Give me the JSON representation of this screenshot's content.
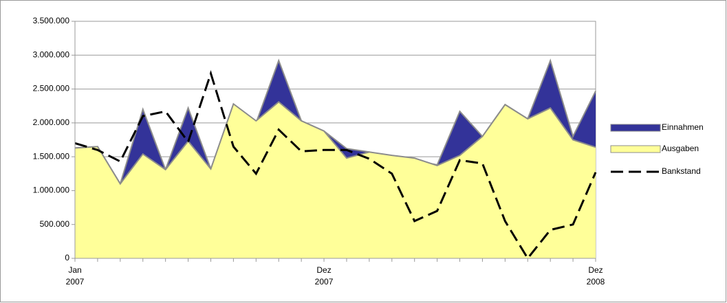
{
  "chart_data": {
    "type": "area",
    "categories": [
      "Jan\n2007",
      null,
      null,
      null,
      null,
      null,
      null,
      null,
      null,
      null,
      null,
      "Dez\n2007",
      null,
      null,
      null,
      null,
      null,
      null,
      null,
      null,
      null,
      null,
      null,
      "Dez\n2008"
    ],
    "series": [
      {
        "name": "Einnahmen",
        "type": "area",
        "color": "#333399",
        "values": [
          1630000,
          1650000,
          1100000,
          2200000,
          1310000,
          2220000,
          1320000,
          2200000,
          2000000,
          2920000,
          2030000,
          1880000,
          1620000,
          1570000,
          1500000,
          1450000,
          1380000,
          2170000,
          1800000,
          2270000,
          2060000,
          2920000,
          1800000,
          2470000
        ]
      },
      {
        "name": "Ausgaben",
        "type": "area",
        "color": "#ffff99",
        "values": [
          1630000,
          1650000,
          1100000,
          1540000,
          1310000,
          1730000,
          1320000,
          2280000,
          2030000,
          2310000,
          2030000,
          1880000,
          1480000,
          1570000,
          1520000,
          1480000,
          1370000,
          1520000,
          1800000,
          2270000,
          2060000,
          2220000,
          1750000,
          1640000
        ]
      },
      {
        "name": "Bankstand",
        "type": "line",
        "color": "#000000",
        "values": [
          1700000,
          1600000,
          1430000,
          2100000,
          2170000,
          1720000,
          2730000,
          1650000,
          1250000,
          1900000,
          1580000,
          1600000,
          1600000,
          1470000,
          1250000,
          550000,
          700000,
          1450000,
          1400000,
          550000,
          0,
          420000,
          500000,
          1270000
        ]
      }
    ],
    "ylim": [
      0,
      3500000
    ],
    "yticks": [
      0,
      {
        "value": 500000,
        "label": "500.000"
      },
      {
        "value": 1000000,
        "label": "1.000.000"
      },
      {
        "value": 1500000,
        "label": "1.500.000"
      },
      {
        "value": 2000000,
        "label": "2.000.000"
      },
      {
        "value": 2500000,
        "label": "2.500.000"
      },
      {
        "value": 3000000,
        "label": "3.000.000"
      },
      {
        "value": 3500000,
        "label": "3.500.000"
      }
    ],
    "grid": true,
    "legend": "right"
  }
}
